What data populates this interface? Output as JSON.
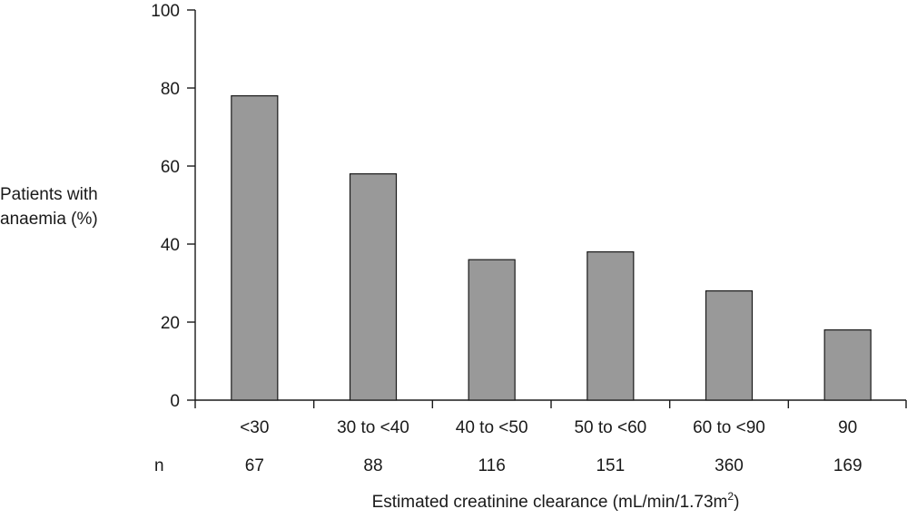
{
  "chart_data": {
    "type": "bar",
    "title": "",
    "ylabel_lines": [
      "Patients with",
      "anaemia (%)"
    ],
    "xlabel": "Estimated creatinine clearance (mL/min/1.73m",
    "xlabel_superscript": "2",
    "xlabel_suffix": ")",
    "categories": [
      "<30",
      "30 to <40",
      "40 to <50",
      "50 to <60",
      "60 to <90",
      "90"
    ],
    "values": [
      78,
      58,
      36,
      38,
      28,
      18
    ],
    "n_label": "n",
    "n_values": [
      "67",
      "88",
      "116",
      "151",
      "360",
      "169"
    ],
    "ylim": [
      0,
      100
    ],
    "yticks": [
      0,
      20,
      40,
      60,
      80,
      100
    ],
    "grid": false,
    "legend": "none",
    "bar_color": "#999999"
  }
}
